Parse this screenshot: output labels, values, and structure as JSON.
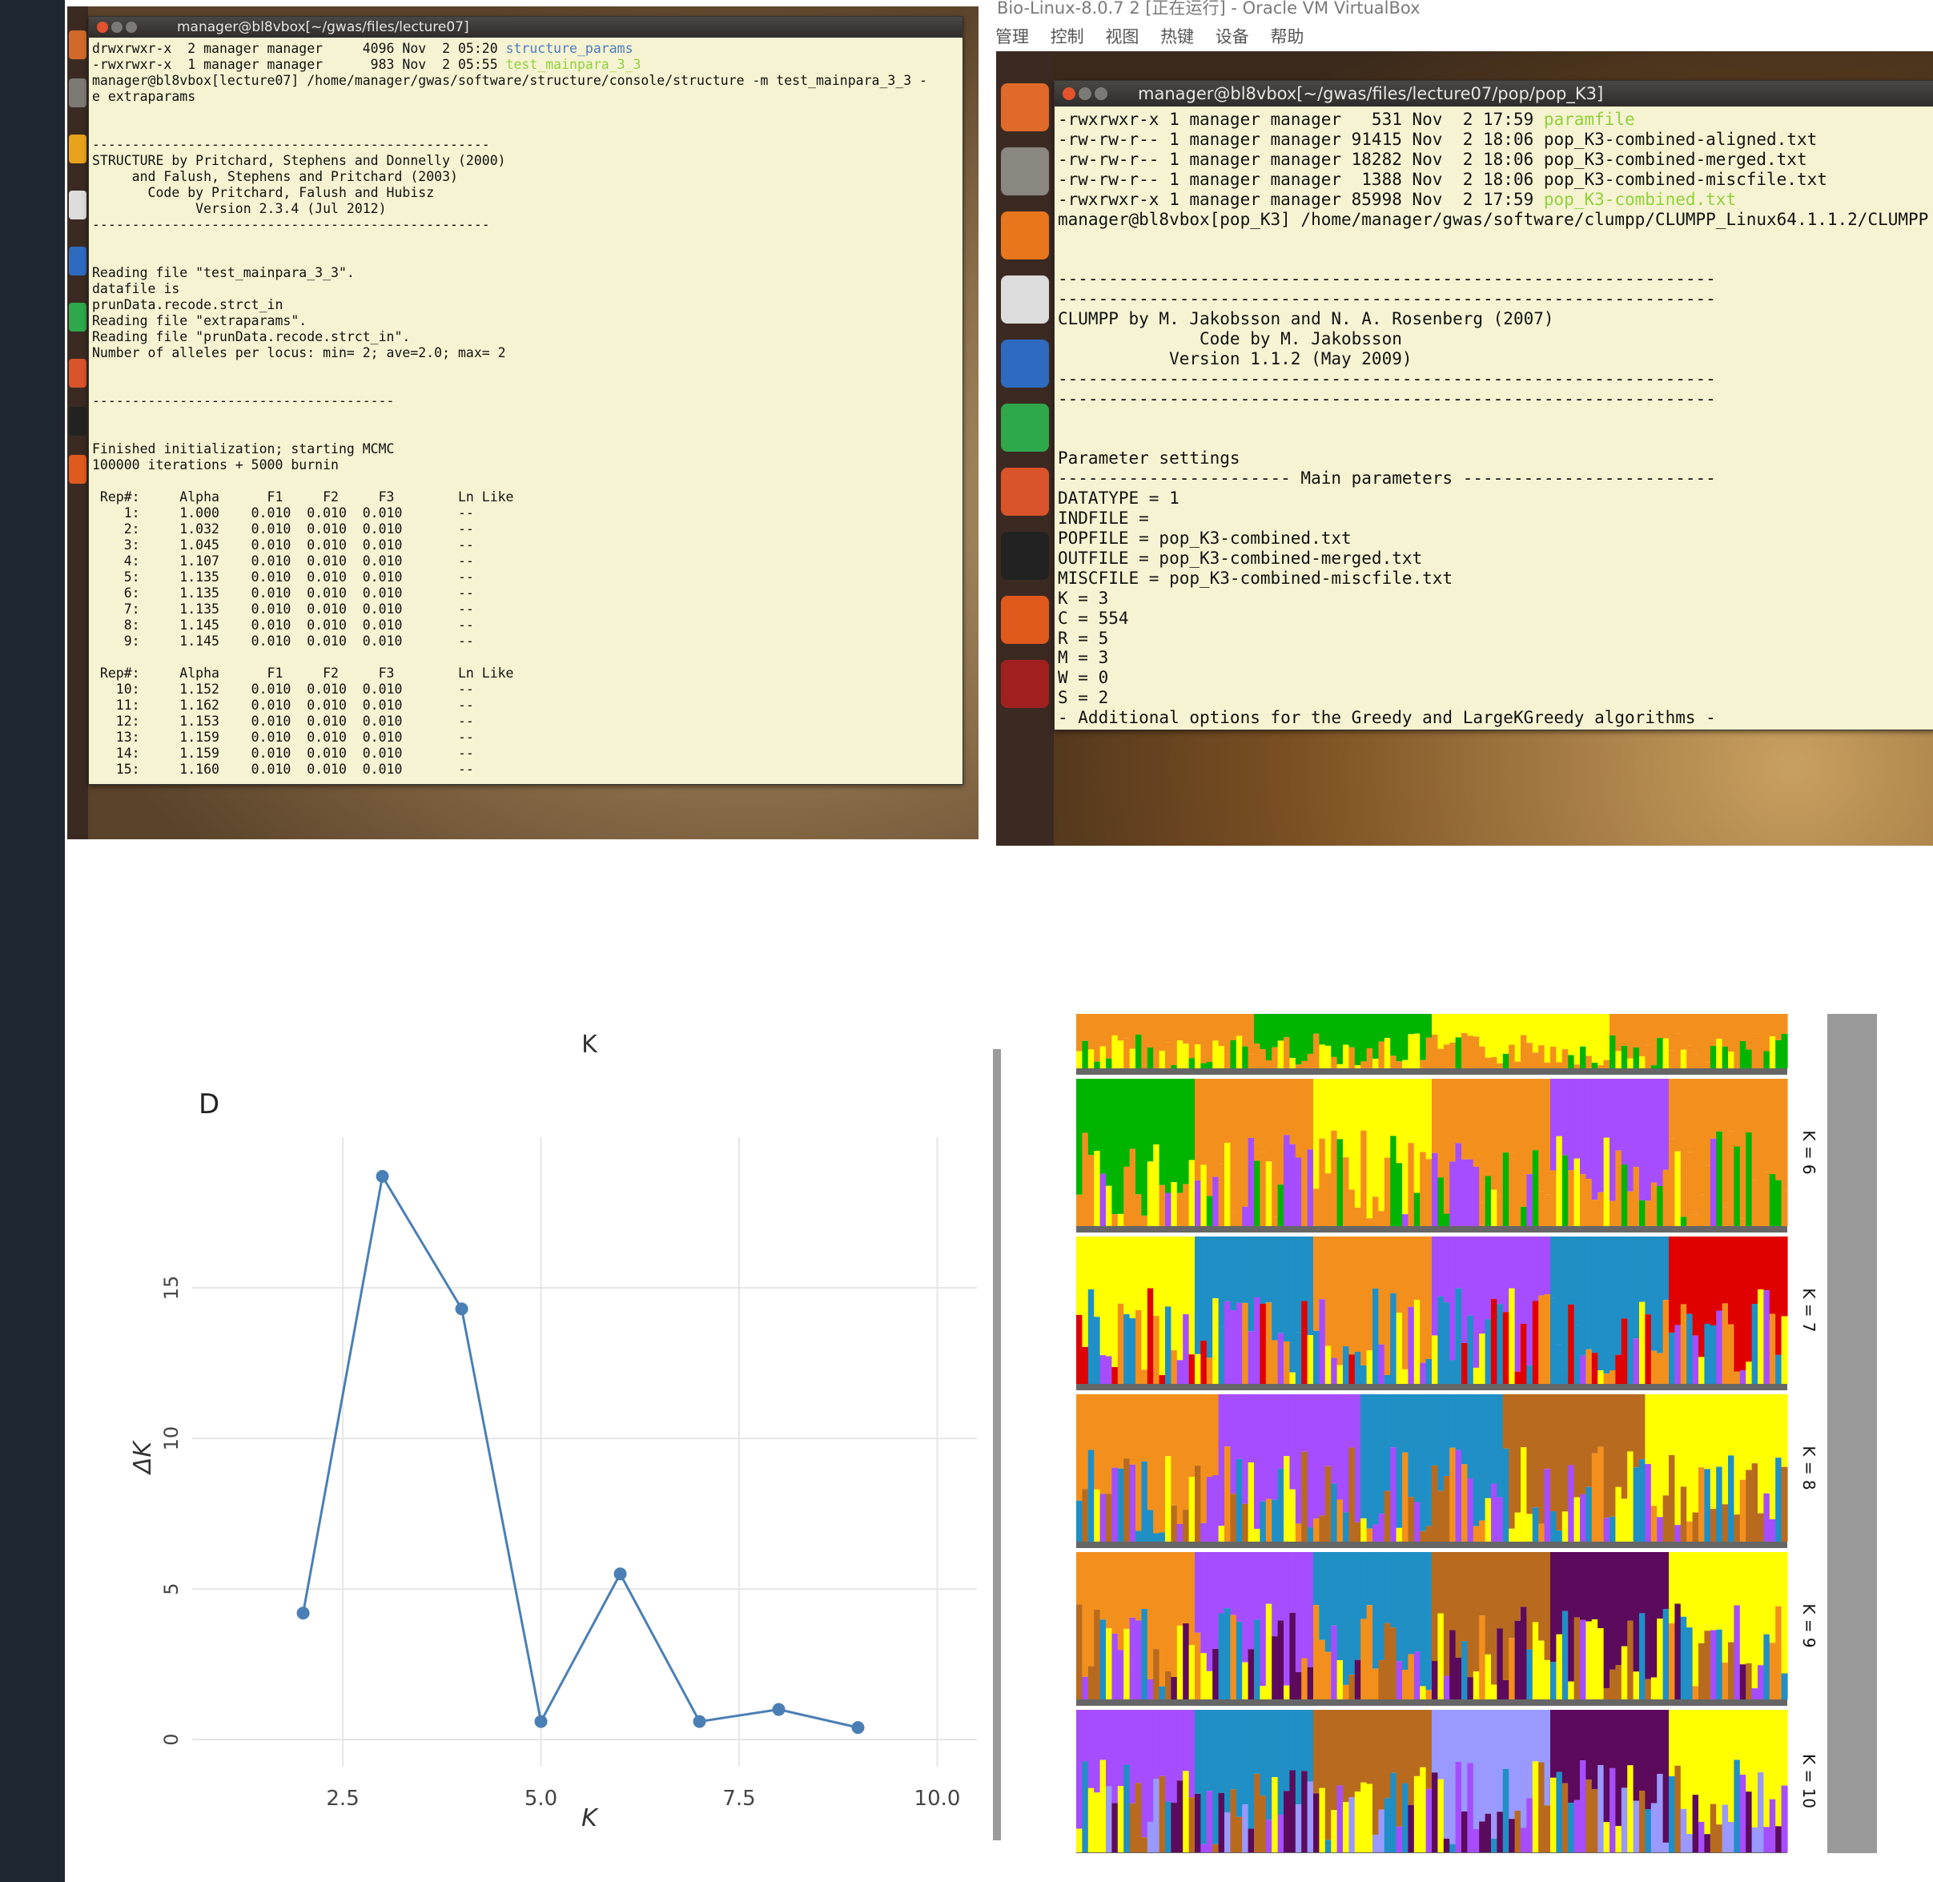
{
  "terminal1": {
    "title": "manager@bl8vbox[~/gwas/files/lecture07]",
    "lines_top": [
      "drwxrwxr-x  2 manager manager     4096 Nov  2 05:20 ",
      "-rwxrwxr-x  1 manager manager      983 Nov  2 05:55 "
    ],
    "dir_name": "structure_params",
    "exe_name": "test_mainpara_3_3",
    "body": "manager@bl8vbox[lecture07] /home/manager/gwas/software/structure/console/structure -m test_mainpara_3_3 -\ne extraparams\n\n\n--------------------------------------------------\nSTRUCTURE by Pritchard, Stephens and Donnelly (2000)\n     and Falush, Stephens and Pritchard (2003)\n       Code by Pritchard, Falush and Hubisz\n             Version 2.3.4 (Jul 2012)\n--------------------------------------------------\n\n\nReading file \"test_mainpara_3_3\".\ndatafile is\nprunData.recode.strct_in\nReading file \"extraparams\".\nReading file \"prunData.recode.strct_in\".\nNumber of alleles per locus: min= 2; ave=2.0; max= 2\n\n\n--------------------------------------\n\n\nFinished initialization; starting MCMC\n100000 iterations + 5000 burnin\n\n Rep#:     Alpha      F1     F2     F3        Ln Like\n    1:     1.000    0.010  0.010  0.010       --\n    2:     1.032    0.010  0.010  0.010       --\n    3:     1.045    0.010  0.010  0.010       --\n    4:     1.107    0.010  0.010  0.010       --\n    5:     1.135    0.010  0.010  0.010       --\n    6:     1.135    0.010  0.010  0.010       --\n    7:     1.135    0.010  0.010  0.010       --\n    8:     1.145    0.010  0.010  0.010       --\n    9:     1.145    0.010  0.010  0.010       --\n\n Rep#:     Alpha      F1     F2     F3        Ln Like\n   10:     1.152    0.010  0.010  0.010       --\n   11:     1.162    0.010  0.010  0.010       --\n   12:     1.153    0.010  0.010  0.010       --\n   13:     1.159    0.010  0.010  0.010       --\n   14:     1.159    0.010  0.010  0.010       --\n   15:     1.160    0.010  0.010  0.010       --"
  },
  "vbox": {
    "title": "Bio-Linux-8.0.7 2 [正在运行] - Oracle VM VirtualBox",
    "menu": [
      "管理",
      "控制",
      "视图",
      "热键",
      "设备",
      "帮助"
    ]
  },
  "terminal2": {
    "title": "manager@bl8vbox[~/gwas/files/lecture07/pop/pop_K3]",
    "files": [
      {
        "prefix": "-rwxrwxr-x 1 manager manager   531 Nov  2 17:59 ",
        "name": "paramfile",
        "style": "green"
      },
      {
        "prefix": "-rw-rw-r-- 1 manager manager 91415 Nov  2 18:06 ",
        "name": "pop_K3-combined-aligned.txt",
        "style": "plain"
      },
      {
        "prefix": "-rw-rw-r-- 1 manager manager 18282 Nov  2 18:06 ",
        "name": "pop_K3-combined-merged.txt",
        "style": "plain"
      },
      {
        "prefix": "-rw-rw-r-- 1 manager manager  1388 Nov  2 18:06 ",
        "name": "pop_K3-combined-miscfile.txt",
        "style": "plain"
      },
      {
        "prefix": "-rwxrwxr-x 1 manager manager 85998 Nov  2 17:59 ",
        "name": "pop_K3-combined.txt",
        "style": "green"
      }
    ],
    "body": "manager@bl8vbox[pop_K3] /home/manager/gwas/software/clumpp/CLUMPP_Linux64.1.1.2/CLUMPP\n\n\n-----------------------------------------------------------------\n-----------------------------------------------------------------\nCLUMPP by M. Jakobsson and N. A. Rosenberg (2007)\n              Code by M. Jakobsson\n           Version 1.1.2 (May 2009)\n-----------------------------------------------------------------\n-----------------------------------------------------------------\n\n\nParameter settings\n----------------------- Main parameters -------------------------\nDATATYPE = 1\nINDFILE =\nPOPFILE = pop_K3-combined.txt\nOUTFILE = pop_K3-combined-merged.txt\nMISCFILE = pop_K3-combined-miscfile.txt\nK = 3\nC = 554\nR = 5\nM = 3\nW = 0\nS = 2\n- Additional options for the Greedy and LargeKGreedy algorithms -"
  },
  "chart_data": [
    {
      "type": "line",
      "title": "",
      "panel_letter": "D",
      "top_cut_label": "K",
      "xlabel": "K",
      "ylabel": "ΔK",
      "x": [
        2,
        3,
        4,
        5,
        6,
        7,
        8,
        9
      ],
      "y": [
        4.2,
        18.7,
        14.3,
        0.6,
        5.5,
        0.6,
        1.0,
        0.4
      ],
      "xlim": [
        0.6,
        10.5
      ],
      "ylim": [
        -0.9,
        20
      ],
      "xticks": [
        2.5,
        5.0,
        7.5,
        10.0
      ],
      "xtick_labels": [
        "2.5",
        "5.0",
        "7.5",
        "10.0"
      ],
      "yticks": [
        0,
        5,
        10,
        15
      ],
      "ytick_labels": [
        "0",
        "5",
        "10",
        "15"
      ],
      "grid": true,
      "series_color": "#4a7fb5"
    },
    {
      "type": "bar",
      "description_type": "stacked admixture barplot",
      "panels": [
        {
          "label": "",
          "colors": [
            "#f3901d",
            "#00b400",
            "#ffff00",
            "#f3901d"
          ]
        },
        {
          "label": "K = 6",
          "colors": [
            "#00b400",
            "#f3901d",
            "#ffff00",
            "#f3901d",
            "#a64dff",
            "#f3901d"
          ]
        },
        {
          "label": "K = 7",
          "colors": [
            "#ffff00",
            "#1f8fc6",
            "#f3901d",
            "#a64dff",
            "#1f8fc6",
            "#e00000"
          ]
        },
        {
          "label": "K = 8",
          "colors": [
            "#f3901d",
            "#a64dff",
            "#1f8fc6",
            "#b86b1f",
            "#ffff00"
          ]
        },
        {
          "label": "K = 9",
          "colors": [
            "#f3901d",
            "#a64dff",
            "#1f8fc6",
            "#b86b1f",
            "#5c0a5c",
            "#ffff00"
          ]
        },
        {
          "label": "K = 10",
          "colors": [
            "#a64dff",
            "#1f8fc6",
            "#b86b1f",
            "#9999ff",
            "#5c0a5c",
            "#ffff00"
          ]
        }
      ]
    }
  ]
}
